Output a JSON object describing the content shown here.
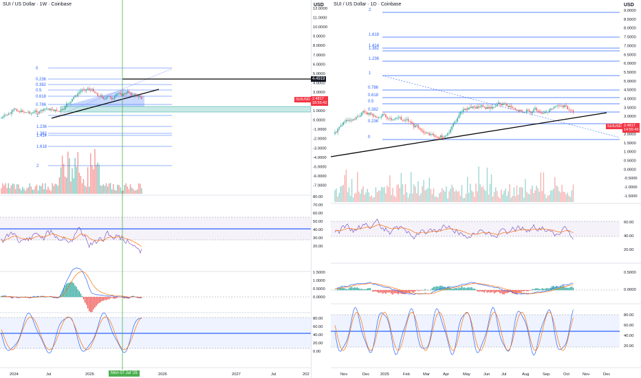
{
  "left_chart": {
    "title": "SUI / US Dollar · 1W · Coinbase",
    "currency": "USD",
    "price_axis": [
      "12.0000",
      "11.0000",
      "10.0000",
      "9.0000",
      "8.0000",
      "7.0000",
      "6.0000",
      "5.0000",
      "4.0000",
      "3.0000",
      "2.0000",
      "1.0000",
      "0.0000",
      "-1.0000",
      "-2.0000",
      "-3.0000",
      "-4.0000",
      "-5.0000",
      "-6.0000",
      "-7.0000"
    ],
    "fib_levels": [
      "0",
      "0.236",
      "0.382",
      "0.5",
      "0.618",
      "0.786",
      "1",
      "1.236",
      "1.382",
      "1.414",
      "1.618",
      "2"
    ],
    "time_axis": [
      "2024",
      "Jul",
      "2025",
      "Jul",
      "2026",
      "2027",
      "Jul",
      "202"
    ],
    "cursor_date": "Mon 07 Jul '25",
    "line_price": "4.4919",
    "symbol_tag": "SUIUSD",
    "symbol_price": "2.4817",
    "symbol_countdown": "18:55:42",
    "rsi_axis": [
      "80.00",
      "70.00",
      "60.00",
      "50.00",
      "40.00",
      "30.00",
      "20.00"
    ],
    "macd_axis": [
      "1.5000",
      "1.0000",
      "0.5000",
      "0.0000"
    ],
    "stoch_axis": [
      "80.00",
      "60.00",
      "40.00",
      "20.00",
      "0.00"
    ]
  },
  "right_chart": {
    "title": "SUI / US Dollar · 1D · Coinbase",
    "currency": "USD",
    "price_axis": [
      "9.0000",
      "8.5000",
      "8.0000",
      "7.5000",
      "7.0000",
      "6.5000",
      "6.0000",
      "5.5000",
      "5.0000",
      "4.5000",
      "4.0000",
      "3.5000",
      "3.0000",
      "2.5000",
      "2.0000",
      "1.5000",
      "1.0000",
      "0.5000",
      "0.0000",
      "-0.5000",
      "-1.0000",
      "-1.5000"
    ],
    "fib_levels": [
      "2",
      "1.618",
      "1.414",
      "1.382",
      "1.236",
      "1",
      "0.786",
      "0.618",
      "0.5",
      "0.382",
      "0.236",
      "0"
    ],
    "time_axis": [
      "Nov",
      "Dec",
      "2025",
      "Feb",
      "Mar",
      "Apr",
      "May",
      "Jun",
      "Jul",
      "Aug",
      "Sep",
      "Oct",
      "Nov",
      "Dec"
    ],
    "symbol_tag": "SUIUSD",
    "symbol_price": "2.4817",
    "symbol_countdown": "14:55:49",
    "rsi_axis": [
      "60.00",
      "40.00",
      "20.00"
    ],
    "macd_axis": [
      "0.5000",
      "0.0000"
    ],
    "stoch_axis": [
      "80.00",
      "60.00",
      "40.00",
      "20.00"
    ]
  },
  "colors": {
    "up": "#26a69a",
    "down": "#ef5350",
    "fib": "#2962ff",
    "rsi": "#7e57c2",
    "signal": "#ff6d00",
    "cursor": "#4caf50",
    "trend": "#000000"
  }
}
